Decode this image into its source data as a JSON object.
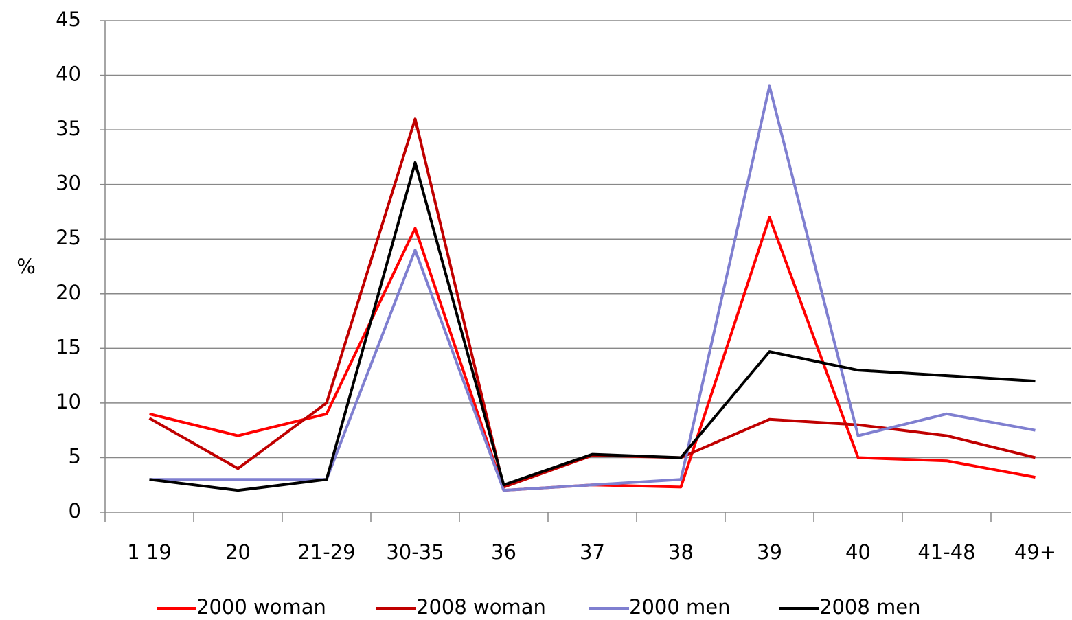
{
  "chart_data": {
    "type": "line",
    "y_label": "%",
    "categories": [
      "1 19",
      "20",
      "21-29",
      "30-35",
      "36",
      "37",
      "38",
      "39",
      "40",
      "41-48",
      "49+"
    ],
    "series": [
      {
        "name": "2000 woman",
        "color": "#ff0000",
        "values": [
          9,
          7,
          9,
          26,
          2,
          2.5,
          2.3,
          27,
          5,
          4.7,
          3.2
        ]
      },
      {
        "name": "2008 woman",
        "color": "#c00000",
        "values": [
          8.6,
          4,
          10,
          36,
          2.3,
          5.2,
          5,
          8.5,
          8,
          7,
          5
        ]
      },
      {
        "name": "2000 men",
        "color": "#7f7fd0",
        "values": [
          3,
          3,
          3,
          24,
          2,
          2.5,
          3,
          39,
          7,
          9,
          7.5
        ]
      },
      {
        "name": "2008 men",
        "color": "#000000",
        "values": [
          3,
          2,
          3,
          32,
          2.5,
          5.3,
          5,
          14.7,
          13,
          12.5,
          12
        ]
      }
    ],
    "ylim": [
      0,
      45
    ],
    "yticks": [
      0,
      5,
      10,
      15,
      20,
      25,
      30,
      35,
      40,
      45
    ],
    "grid": true,
    "legend": "bottom"
  }
}
